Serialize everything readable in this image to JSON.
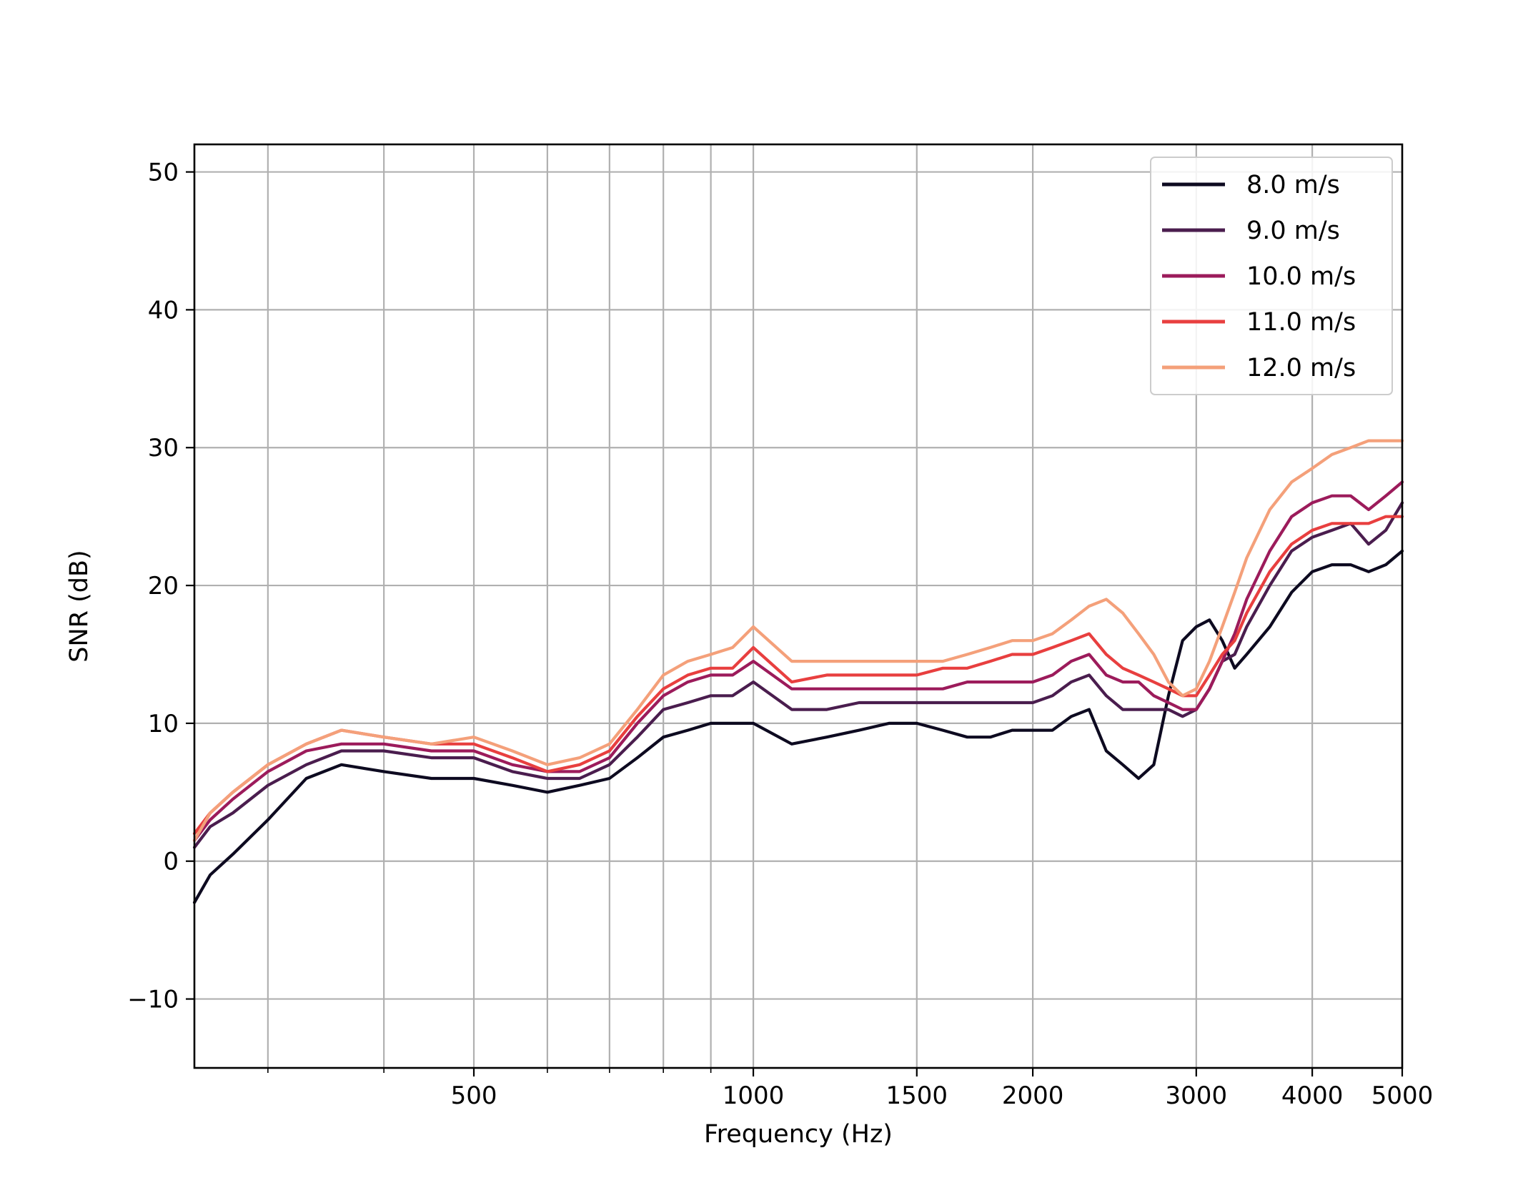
{
  "chart_data": {
    "type": "line",
    "title": "",
    "xlabel": "Frequency (Hz)",
    "ylabel": "SNR (dB)",
    "x_scale": "log",
    "xlim": [
      250,
      5000
    ],
    "ylim": [
      -15,
      52
    ],
    "grid": true,
    "legend_position": "top-right",
    "x_major_ticks": [
      500,
      1000,
      1500,
      2000,
      3000,
      4000,
      5000
    ],
    "x_major_tick_labels": [
      "500",
      "1000",
      "1500",
      "2000",
      "3000",
      "4000",
      "5000"
    ],
    "x_minor_ticks": [
      300,
      400,
      600,
      700,
      800,
      900
    ],
    "y_ticks": [
      -10,
      0,
      10,
      20,
      30,
      40,
      50
    ],
    "y_tick_labels": [
      "−10",
      "0",
      "10",
      "20",
      "30",
      "40",
      "50"
    ],
    "x": [
      250,
      260,
      275,
      300,
      330,
      360,
      400,
      450,
      500,
      550,
      600,
      650,
      700,
      750,
      800,
      850,
      900,
      950,
      1000,
      1100,
      1200,
      1300,
      1400,
      1500,
      1600,
      1700,
      1800,
      1900,
      2000,
      2100,
      2200,
      2300,
      2400,
      2500,
      2600,
      2700,
      2800,
      2900,
      3000,
      3100,
      3200,
      3300,
      3400,
      3600,
      3800,
      4000,
      4200,
      4400,
      4600,
      4800,
      5000
    ],
    "series": [
      {
        "name": "8.0 m/s",
        "color": "#0d0a20",
        "values": [
          -3,
          -1,
          0.5,
          3,
          6,
          7,
          6.5,
          6,
          6,
          5.5,
          5,
          5.5,
          6,
          7.5,
          9,
          9.5,
          10,
          10,
          10,
          8.5,
          9,
          9.5,
          10,
          10,
          9.5,
          9,
          9,
          9.5,
          9.5,
          9.5,
          10.5,
          11,
          8,
          7,
          6,
          7,
          12,
          16,
          17,
          17.5,
          16,
          14,
          15,
          17,
          19.5,
          21,
          21.5,
          21.5,
          21,
          21.5,
          22.5
        ]
      },
      {
        "name": "9.0 m/s",
        "color": "#4a1d4e",
        "values": [
          1,
          2.5,
          3.5,
          5.5,
          7,
          8,
          8,
          7.5,
          7.5,
          6.5,
          6,
          6,
          7,
          9,
          11,
          11.5,
          12,
          12,
          13,
          11,
          11,
          11.5,
          11.5,
          11.5,
          11.5,
          11.5,
          11.5,
          11.5,
          11.5,
          12,
          13,
          13.5,
          12,
          11,
          11,
          11,
          11,
          10.5,
          11,
          12.5,
          14.5,
          15,
          17,
          20,
          22.5,
          23.5,
          24,
          24.5,
          23,
          24,
          26
        ]
      },
      {
        "name": "10.0 m/s",
        "color": "#9c1b5b",
        "values": [
          1.5,
          3,
          4.5,
          6.5,
          8,
          8.5,
          8.5,
          8,
          8,
          7,
          6.5,
          6.5,
          7.5,
          10,
          12,
          13,
          13.5,
          13.5,
          14.5,
          12.5,
          12.5,
          12.5,
          12.5,
          12.5,
          12.5,
          13,
          13,
          13,
          13,
          13.5,
          14.5,
          15,
          13.5,
          13,
          13,
          12,
          11.5,
          11,
          11,
          12.5,
          14.5,
          16.5,
          19,
          22.5,
          25,
          26,
          26.5,
          26.5,
          25.5,
          26.5,
          27.5
        ]
      },
      {
        "name": "11.0 m/s",
        "color": "#e83f3f",
        "values": [
          2,
          3.5,
          5,
          7,
          8.5,
          9.5,
          9,
          8.5,
          8.5,
          7.5,
          6.5,
          7,
          8,
          10.5,
          12.5,
          13.5,
          14,
          14,
          15.5,
          13,
          13.5,
          13.5,
          13.5,
          13.5,
          14,
          14,
          14.5,
          15,
          15,
          15.5,
          16,
          16.5,
          15,
          14,
          13.5,
          13,
          12.5,
          12,
          12,
          13.5,
          15,
          16,
          18,
          21,
          23,
          24,
          24.5,
          24.5,
          24.5,
          25,
          25
        ]
      },
      {
        "name": "12.0 m/s",
        "color": "#f4a07a",
        "values": [
          1.5,
          3.5,
          5,
          7,
          8.5,
          9.5,
          9,
          8.5,
          9,
          8,
          7,
          7.5,
          8.5,
          11,
          13.5,
          14.5,
          15,
          15.5,
          17,
          14.5,
          14.5,
          14.5,
          14.5,
          14.5,
          14.5,
          15,
          15.5,
          16,
          16,
          16.5,
          17.5,
          18.5,
          19,
          18,
          16.5,
          15,
          13,
          12,
          12.5,
          14.5,
          17,
          19.5,
          22,
          25.5,
          27.5,
          28.5,
          29.5,
          30,
          30.5,
          30.5,
          30.5
        ]
      }
    ]
  }
}
